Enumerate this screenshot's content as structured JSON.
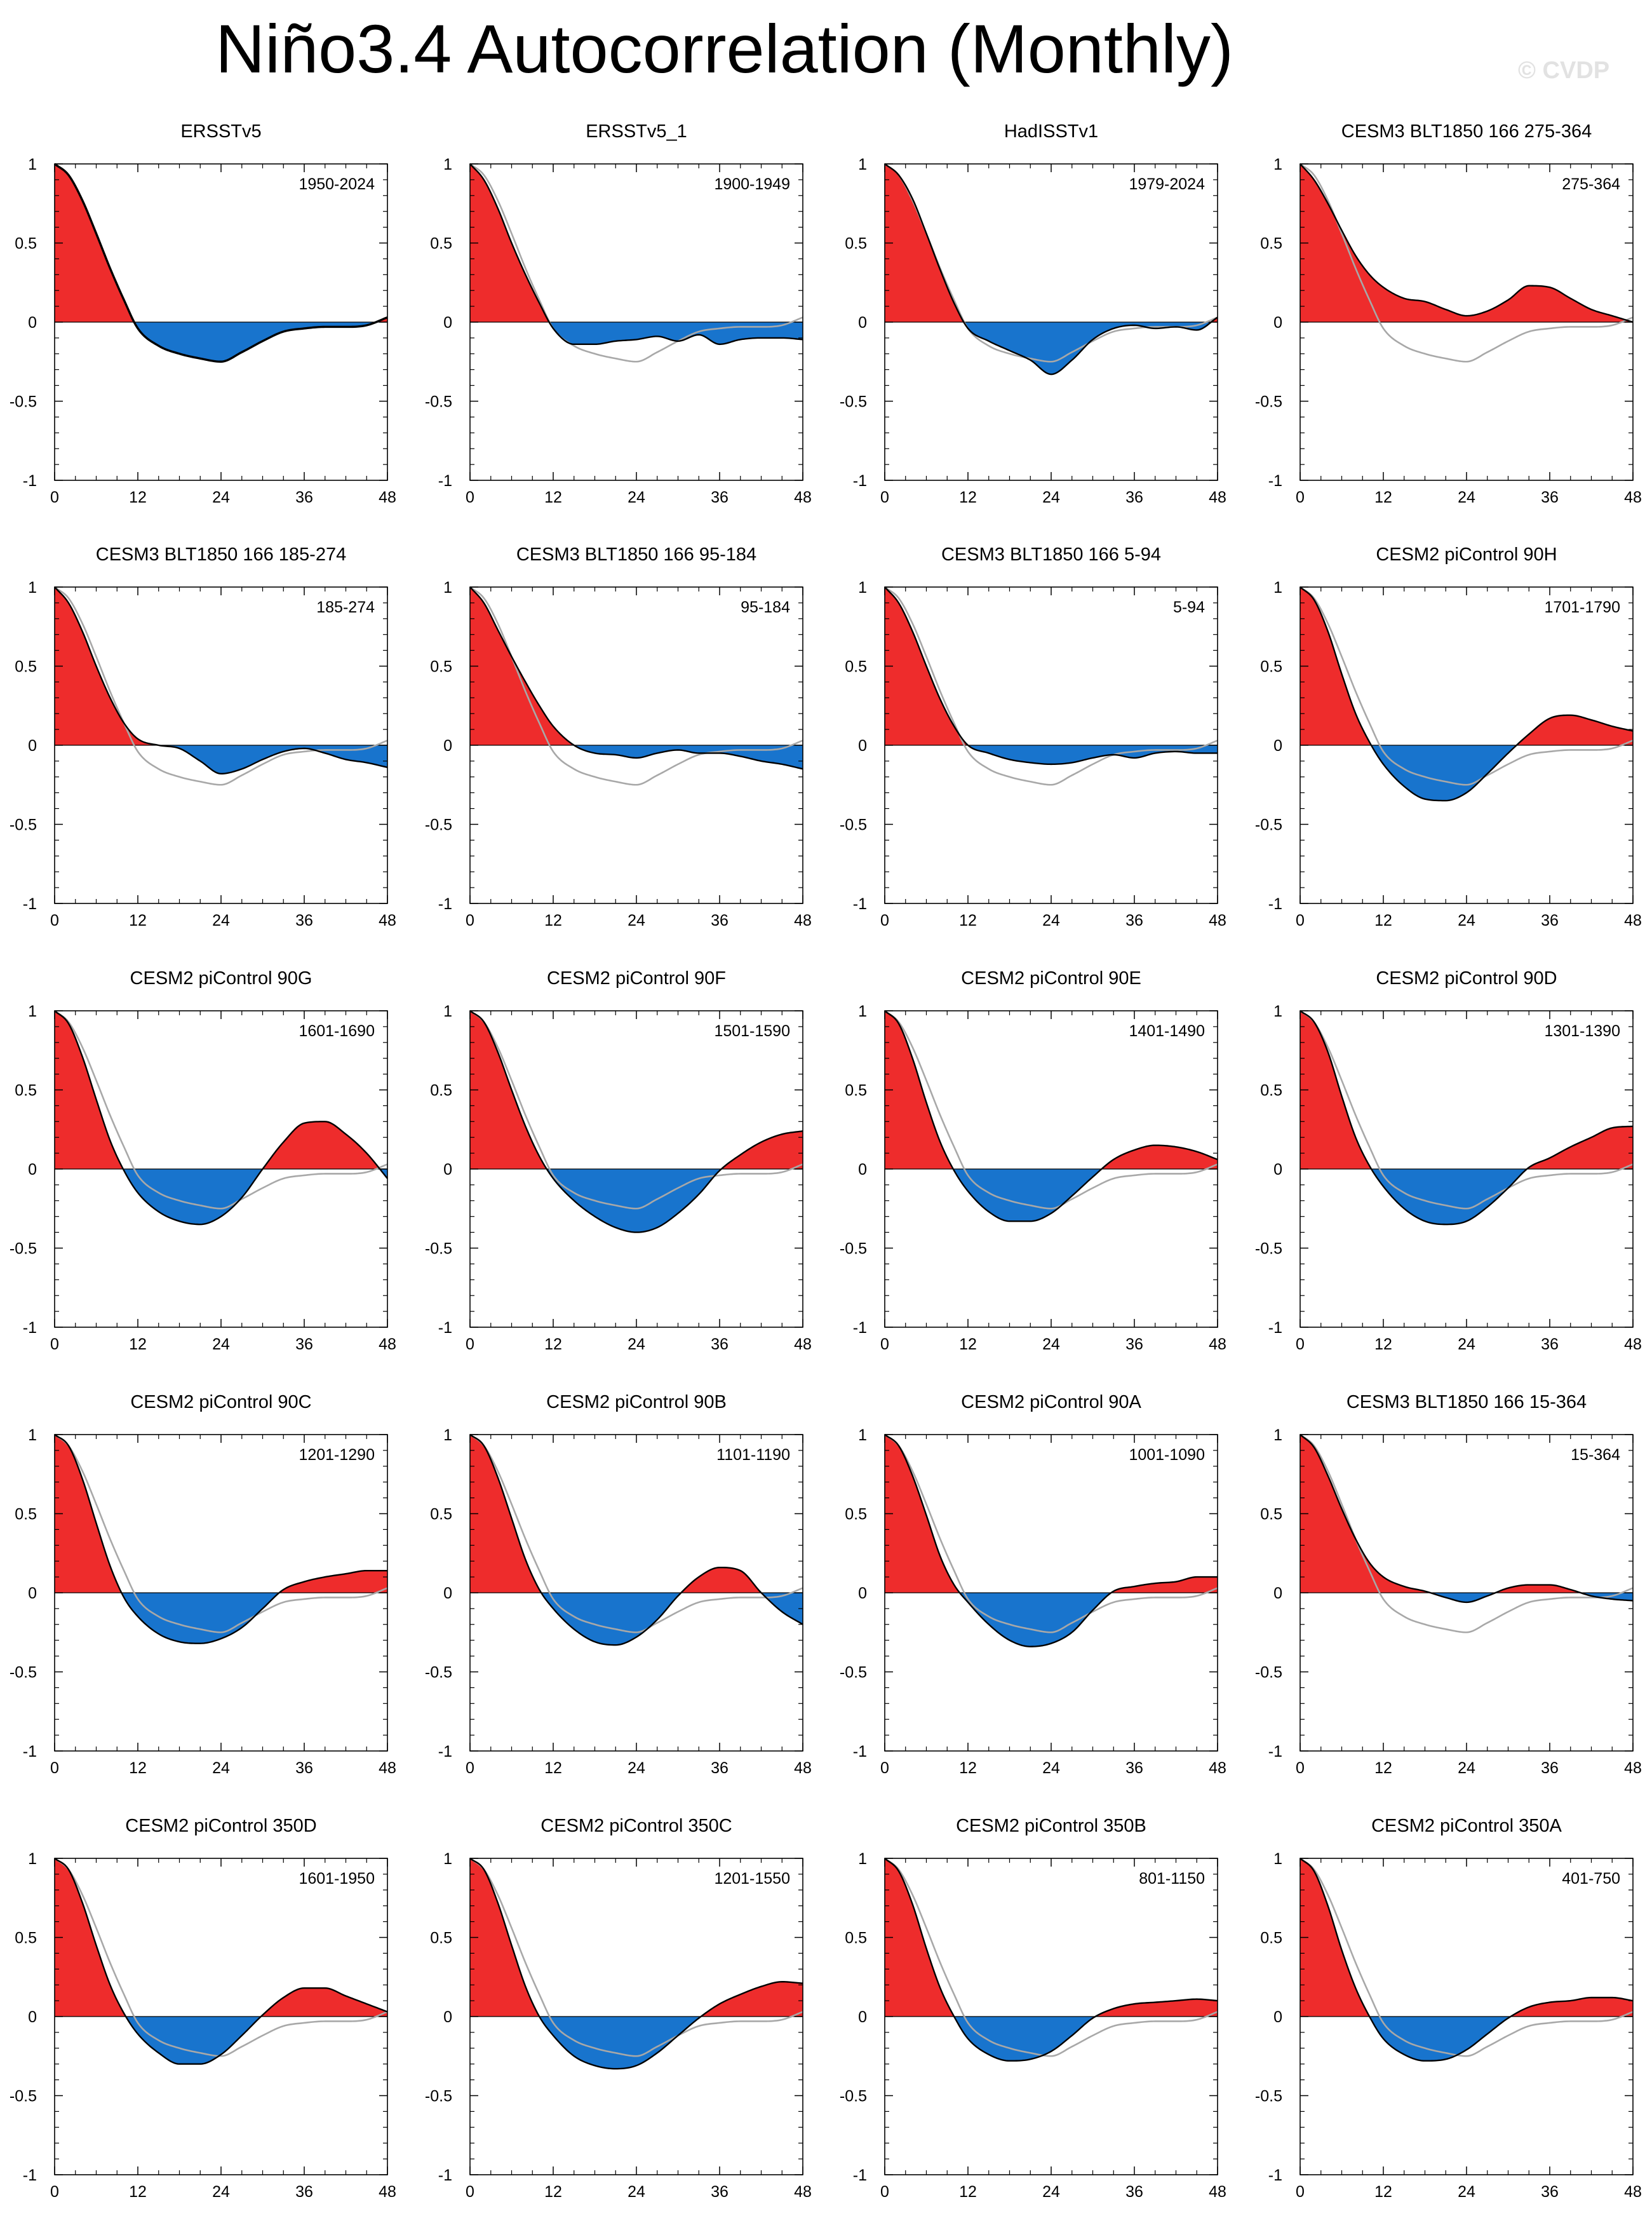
{
  "title": "Niño3.4 Autocorrelation (Monthly)",
  "watermark": "© CVDP",
  "colors": {
    "positive": "#ee2c2c",
    "negative": "#1874cd",
    "line": "#000000",
    "reference": "#a8a8a8",
    "axis": "#000000"
  },
  "chart_data": {
    "type": "area",
    "xlim": [
      0,
      48
    ],
    "ylim": [
      -1,
      1
    ],
    "x_ticks": [
      0,
      12,
      24,
      36,
      48
    ],
    "x_tick_labels": [
      "0",
      "12",
      "24",
      "36",
      "48"
    ],
    "y_ticks": [
      1,
      0.5,
      0,
      -0.5,
      -1
    ],
    "y_tick_labels": [
      "1",
      "0.5",
      "0",
      "-0.5",
      "-1"
    ],
    "x_knots": [
      0,
      2,
      4,
      6,
      8,
      10,
      12,
      15,
      18,
      21,
      24,
      27,
      30,
      33,
      36,
      39,
      42,
      45,
      48
    ],
    "reference_panel": "ERSSTv5",
    "panels": [
      {
        "title": "ERSSTv5",
        "period": "1950-2024",
        "y": [
          1,
          0.93,
          0.77,
          0.56,
          0.34,
          0.14,
          -0.04,
          -0.15,
          -0.2,
          -0.23,
          -0.25,
          -0.19,
          -0.12,
          -0.06,
          -0.04,
          -0.03,
          -0.03,
          -0.02,
          0.03
        ]
      },
      {
        "title": "ERSSTv5_1",
        "period": "1900-1949",
        "y": [
          1,
          0.9,
          0.72,
          0.5,
          0.3,
          0.12,
          -0.04,
          -0.14,
          -0.14,
          -0.12,
          -0.11,
          -0.09,
          -0.12,
          -0.08,
          -0.14,
          -0.11,
          -0.1,
          -0.1,
          -0.11
        ]
      },
      {
        "title": "HadISSTv1",
        "period": "1979-2024",
        "y": [
          1,
          0.93,
          0.78,
          0.56,
          0.33,
          0.12,
          -0.04,
          -0.12,
          -0.18,
          -0.24,
          -0.33,
          -0.24,
          -0.11,
          -0.04,
          -0.02,
          -0.04,
          -0.03,
          -0.05,
          0.03
        ]
      },
      {
        "title": "CESM3 BLT1850 166 275-364",
        "period": "275-364",
        "y": [
          1,
          0.9,
          0.75,
          0.58,
          0.42,
          0.3,
          0.22,
          0.15,
          0.13,
          0.08,
          0.04,
          0.07,
          0.14,
          0.23,
          0.22,
          0.15,
          0.08,
          0.04,
          0.0
        ]
      },
      {
        "title": "CESM3 BLT1850 166 185-274",
        "period": "185-274",
        "y": [
          1,
          0.9,
          0.72,
          0.5,
          0.3,
          0.14,
          0.04,
          0.0,
          -0.02,
          -0.1,
          -0.18,
          -0.15,
          -0.09,
          -0.04,
          -0.02,
          -0.05,
          -0.09,
          -0.11,
          -0.14
        ]
      },
      {
        "title": "CESM3 BLT1850 166 95-184",
        "period": "95-184",
        "y": [
          1,
          0.9,
          0.73,
          0.56,
          0.4,
          0.25,
          0.12,
          0.0,
          -0.05,
          -0.06,
          -0.08,
          -0.05,
          -0.03,
          -0.05,
          -0.05,
          -0.07,
          -0.1,
          -0.12,
          -0.15
        ]
      },
      {
        "title": "CESM3 BLT1850 166 5-94",
        "period": "5-94",
        "y": [
          1,
          0.9,
          0.72,
          0.5,
          0.29,
          0.12,
          0.0,
          -0.05,
          -0.09,
          -0.11,
          -0.12,
          -0.11,
          -0.08,
          -0.06,
          -0.08,
          -0.05,
          -0.04,
          -0.05,
          -0.05
        ]
      },
      {
        "title": "CESM2 piControl 90H",
        "period": "1701-1790",
        "y": [
          1,
          0.92,
          0.72,
          0.45,
          0.2,
          0.02,
          -0.12,
          -0.26,
          -0.34,
          -0.35,
          -0.3,
          -0.18,
          -0.05,
          0.07,
          0.17,
          0.19,
          0.16,
          0.12,
          0.09
        ]
      },
      {
        "title": "CESM2 piControl 90G",
        "period": "1601-1690",
        "y": [
          1,
          0.92,
          0.71,
          0.44,
          0.18,
          -0.01,
          -0.15,
          -0.27,
          -0.33,
          -0.35,
          -0.3,
          -0.18,
          0.0,
          0.17,
          0.29,
          0.3,
          0.22,
          0.1,
          -0.06
        ]
      },
      {
        "title": "CESM2 piControl 90F",
        "period": "1501-1590",
        "y": [
          1,
          0.93,
          0.74,
          0.5,
          0.27,
          0.08,
          -0.06,
          -0.2,
          -0.3,
          -0.37,
          -0.4,
          -0.37,
          -0.28,
          -0.16,
          -0.01,
          0.09,
          0.17,
          0.22,
          0.24
        ]
      },
      {
        "title": "CESM2 piControl 90E",
        "period": "1401-1490",
        "y": [
          1,
          0.92,
          0.7,
          0.42,
          0.17,
          -0.01,
          -0.14,
          -0.27,
          -0.33,
          -0.33,
          -0.28,
          -0.17,
          -0.05,
          0.06,
          0.12,
          0.15,
          0.14,
          0.11,
          0.06
        ]
      },
      {
        "title": "CESM2 piControl 90D",
        "period": "1301-1390",
        "y": [
          1,
          0.93,
          0.74,
          0.46,
          0.2,
          0.02,
          -0.11,
          -0.25,
          -0.33,
          -0.35,
          -0.33,
          -0.24,
          -0.12,
          0.01,
          0.07,
          0.14,
          0.2,
          0.26,
          0.27
        ]
      },
      {
        "title": "CESM2 piControl 90C",
        "period": "1201-1290",
        "y": [
          1,
          0.93,
          0.72,
          0.44,
          0.17,
          -0.03,
          -0.15,
          -0.26,
          -0.31,
          -0.32,
          -0.29,
          -0.22,
          -0.1,
          0.02,
          0.07,
          0.1,
          0.12,
          0.14,
          0.14
        ]
      },
      {
        "title": "CESM2 piControl 90B",
        "period": "1101-1190",
        "y": [
          1,
          0.93,
          0.73,
          0.47,
          0.21,
          0.02,
          -0.1,
          -0.23,
          -0.31,
          -0.33,
          -0.28,
          -0.17,
          -0.02,
          0.1,
          0.16,
          0.14,
          0.0,
          -0.12,
          -0.2
        ]
      },
      {
        "title": "CESM2 piControl 90A",
        "period": "1001-1090",
        "y": [
          1,
          0.93,
          0.74,
          0.49,
          0.23,
          0.05,
          -0.06,
          -0.2,
          -0.3,
          -0.34,
          -0.32,
          -0.25,
          -0.11,
          0.01,
          0.04,
          0.06,
          0.07,
          0.1,
          0.1
        ]
      },
      {
        "title": "CESM3 BLT1850 166 15-364",
        "period": "15-364",
        "y": [
          1,
          0.92,
          0.74,
          0.53,
          0.34,
          0.19,
          0.1,
          0.04,
          0.01,
          -0.03,
          -0.06,
          -0.02,
          0.03,
          0.05,
          0.05,
          0.02,
          -0.02,
          -0.04,
          -0.05
        ]
      },
      {
        "title": "CESM2 piControl 350D",
        "period": "1601-1950",
        "y": [
          1,
          0.93,
          0.72,
          0.45,
          0.2,
          0.02,
          -0.11,
          -0.23,
          -0.3,
          -0.3,
          -0.24,
          -0.12,
          0.01,
          0.12,
          0.18,
          0.18,
          0.13,
          0.08,
          0.03
        ]
      },
      {
        "title": "CESM2 piControl 350C",
        "period": "1201-1550",
        "y": [
          1,
          0.93,
          0.72,
          0.45,
          0.19,
          0.0,
          -0.12,
          -0.25,
          -0.31,
          -0.33,
          -0.31,
          -0.23,
          -0.12,
          -0.01,
          0.08,
          0.14,
          0.19,
          0.22,
          0.21
        ]
      },
      {
        "title": "CESM2 piControl 350B",
        "period": "801-1150",
        "y": [
          1,
          0.92,
          0.71,
          0.43,
          0.18,
          0.0,
          -0.14,
          -0.24,
          -0.28,
          -0.27,
          -0.22,
          -0.12,
          -0.01,
          0.05,
          0.08,
          0.09,
          0.1,
          0.11,
          0.1
        ]
      },
      {
        "title": "CESM2 piControl 350A",
        "period": "401-750",
        "y": [
          1,
          0.92,
          0.7,
          0.42,
          0.18,
          0.0,
          -0.14,
          -0.24,
          -0.28,
          -0.27,
          -0.21,
          -0.11,
          -0.01,
          0.06,
          0.09,
          0.1,
          0.12,
          0.12,
          0.1
        ]
      }
    ]
  }
}
